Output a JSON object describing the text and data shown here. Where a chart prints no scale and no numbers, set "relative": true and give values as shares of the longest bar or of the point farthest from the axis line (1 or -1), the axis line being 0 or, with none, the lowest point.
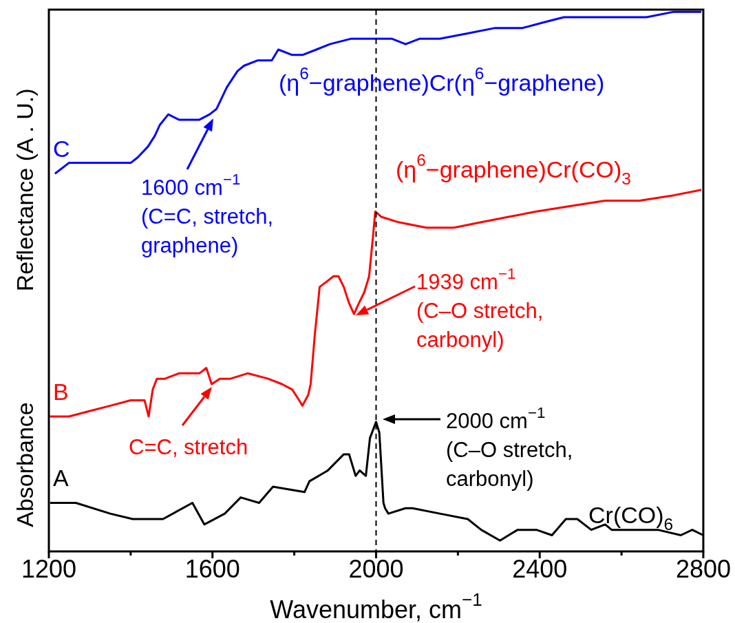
{
  "chart_data": {
    "type": "line",
    "relative": true,
    "marker": "none",
    "xlabel": "Wavenumber, cm$^{−1}$",
    "ylabel": "Reflectance (A . U.)",
    "xlim": [
      1200,
      2800
    ],
    "xticks": [
      1200,
      {
        "value": 1400,
        "label": null
      },
      1600,
      {
        "value": 1800,
        "label": null
      },
      2000,
      {
        "value": 2200,
        "label": null
      },
      2400,
      {
        "value": 2600,
        "label": null
      },
      2800
    ],
    "series": [
      {
        "name": "C",
        "color": "#0000ff",
        "x": [
          1215,
          1249,
          1282,
          1316,
          1350,
          1400,
          1417,
          1442,
          1459,
          1471,
          1492,
          1518,
          1543,
          1568,
          1593,
          1610,
          1635,
          1661,
          1677,
          1711,
          1745,
          1761,
          1795,
          1820,
          1854,
          1887,
          1938,
          1997,
          2039,
          2072,
          2106,
          2156,
          2224,
          2291,
          2358,
          2408,
          2459,
          2526,
          2593,
          2661,
          2728,
          2795
        ],
        "values": [
          0.7,
          0.72,
          0.72,
          0.72,
          0.72,
          0.72,
          0.73,
          0.75,
          0.77,
          0.79,
          0.81,
          0.8,
          0.8,
          0.8,
          0.81,
          0.82,
          0.86,
          0.89,
          0.9,
          0.91,
          0.91,
          0.93,
          0.92,
          0.92,
          0.93,
          0.94,
          0.95,
          0.95,
          0.95,
          0.94,
          0.95,
          0.95,
          0.96,
          0.97,
          0.97,
          0.98,
          0.99,
          0.99,
          0.99,
          0.99,
          1.0,
          1.0
        ]
      },
      {
        "name": "B",
        "color": "#ff0000",
        "x": [
          1202,
          1249,
          1299,
          1350,
          1400,
          1434,
          1444,
          1454,
          1464,
          1484,
          1518,
          1568,
          1585,
          1598,
          1618,
          1644,
          1686,
          1736,
          1770,
          1795,
          1812,
          1820,
          1834,
          1840,
          1850,
          1862,
          1879,
          1896,
          1908,
          1921,
          1934,
          1946,
          1958,
          1971,
          1983,
          1992,
          1998,
          2013,
          2055,
          2123,
          2190,
          2257,
          2324,
          2392,
          2476,
          2560,
          2644,
          2728,
          2795
        ],
        "values": [
          0.25,
          0.25,
          0.26,
          0.27,
          0.28,
          0.28,
          0.25,
          0.3,
          0.32,
          0.32,
          0.33,
          0.33,
          0.34,
          0.31,
          0.32,
          0.32,
          0.33,
          0.32,
          0.31,
          0.3,
          0.28,
          0.27,
          0.29,
          0.31,
          0.4,
          0.49,
          0.5,
          0.51,
          0.51,
          0.49,
          0.46,
          0.44,
          0.46,
          0.48,
          0.51,
          0.58,
          0.63,
          0.62,
          0.61,
          0.6,
          0.6,
          0.61,
          0.62,
          0.63,
          0.64,
          0.65,
          0.65,
          0.66,
          0.67
        ]
      },
      {
        "name": "A",
        "color": "#000000",
        "x": [
          1203,
          1266,
          1350,
          1405,
          1479,
          1551,
          1580,
          1630,
          1669,
          1714,
          1748,
          1825,
          1837,
          1882,
          1921,
          1934,
          1950,
          1960,
          1975,
          1985,
          2000,
          2008,
          2018,
          2022,
          2030,
          2072,
          2089,
          2156,
          2224,
          2257,
          2303,
          2324,
          2346,
          2392,
          2430,
          2464,
          2492,
          2526,
          2560,
          2576,
          2632,
          2689,
          2745,
          2773,
          2800
        ],
        "values": [
          0.09,
          0.09,
          0.07,
          0.06,
          0.06,
          0.09,
          0.05,
          0.07,
          0.1,
          0.09,
          0.12,
          0.11,
          0.13,
          0.15,
          0.18,
          0.18,
          0.14,
          0.15,
          0.14,
          0.21,
          0.24,
          0.22,
          0.09,
          0.08,
          0.07,
          0.08,
          0.08,
          0.07,
          0.06,
          0.04,
          0.02,
          0.03,
          0.04,
          0.04,
          0.03,
          0.06,
          0.06,
          0.04,
          0.05,
          0.04,
          0.04,
          0.04,
          0.03,
          0.04,
          0.03
        ]
      }
    ],
    "ref_lines": [
      {
        "axis": "x",
        "value": 2000,
        "color": "#000000",
        "line_style": "dashed"
      }
    ],
    "annotations": [
      "1600 cm$^{−1}$\n(C=C, stretch,\ngraphene)",
      "1939 cm$^{−1}$\n(C–O stretch,\ncarbonyl)",
      "C=C, stretch",
      "2000 cm$^{−1}$\n(C–O stretch,\ncarbonyl)",
      "(η$^{6}$−graphene)Cr(η$^{6}$−graphene)",
      "(η$^{6}$−graphene)Cr(CO)$_{3}$",
      "Cr(CO)$_{6}$",
      "Absorbance"
    ]
  }
}
